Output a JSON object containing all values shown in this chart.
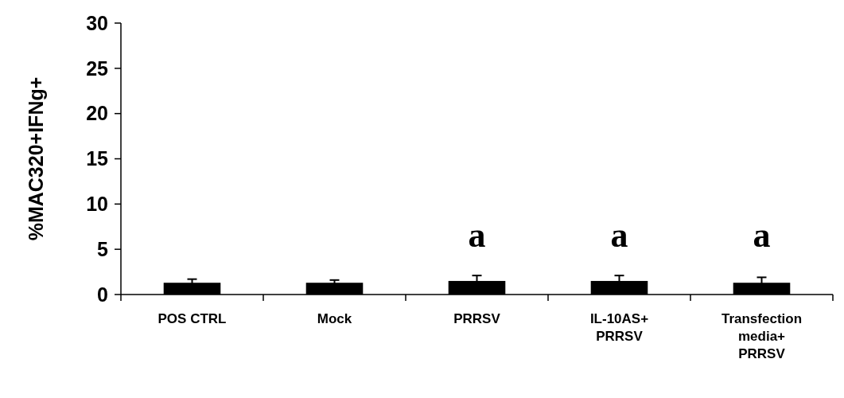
{
  "chart_data": {
    "type": "bar",
    "ylabel": "%MAC320+IFNg+",
    "categories": [
      "POS CTRL",
      "Mock",
      "PRRSV",
      "IL-10AS+\nPRRSV",
      "Transfection\nmedia+\nPRRSV"
    ],
    "values": [
      1.3,
      1.3,
      1.5,
      1.5,
      1.3
    ],
    "errors": [
      0.4,
      0.3,
      0.6,
      0.6,
      0.6
    ],
    "color": "#000000",
    "ylim": [
      0,
      30
    ],
    "yticks": [
      0,
      5,
      10,
      15,
      20,
      25,
      30
    ],
    "grid": false,
    "annotations": [
      "a",
      "a",
      "a"
    ]
  }
}
